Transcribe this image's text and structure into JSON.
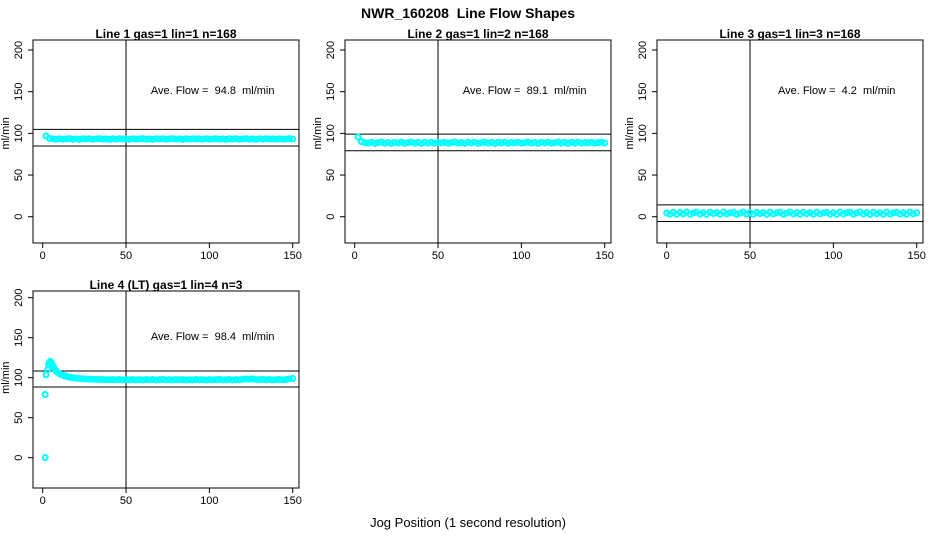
{
  "figure": {
    "title": "NWR_160208  Line Flow Shapes",
    "xlabel": "Jog Position (1 second resolution)",
    "background_color": "#ffffff",
    "marker_color": "#00ffff",
    "axis_color": "#000000"
  },
  "chart_data": [
    {
      "type": "scatter",
      "title": "Line 1 gas=1 lin=1 n=168",
      "annotation": "Ave. Flow =  94.8  ml/min",
      "avg_flow_ml_min": 94.8,
      "n": 168,
      "ylabel": "ml/min",
      "xticks": [
        0,
        50,
        100,
        150
      ],
      "yticks": [
        0,
        50,
        100,
        150,
        200
      ],
      "xlim": [
        0,
        150
      ],
      "ylim": [
        0,
        200
      ],
      "vline_x": 50,
      "hlines": [
        104.8,
        84.8
      ],
      "points": [
        [
          2,
          96.8
        ],
        [
          4,
          94.0
        ],
        [
          6,
          93.4
        ],
        [
          8,
          93.0
        ],
        [
          10,
          93.5
        ],
        [
          12,
          92.9
        ],
        [
          14,
          93.3
        ],
        [
          16,
          93.7
        ],
        [
          18,
          93.0
        ],
        [
          20,
          93.4
        ],
        [
          22,
          92.8
        ],
        [
          24,
          93.5
        ],
        [
          26,
          93.2
        ],
        [
          28,
          93.6
        ],
        [
          30,
          92.9
        ],
        [
          32,
          93.3
        ],
        [
          34,
          93.7
        ],
        [
          36,
          93.1
        ],
        [
          38,
          93.4
        ],
        [
          40,
          92.8
        ],
        [
          42,
          93.5
        ],
        [
          44,
          93.0
        ],
        [
          46,
          93.6
        ],
        [
          48,
          93.2
        ],
        [
          50,
          93.4
        ],
        [
          52,
          92.9
        ],
        [
          54,
          93.6
        ],
        [
          56,
          93.1
        ],
        [
          58,
          93.3
        ],
        [
          60,
          93.7
        ],
        [
          62,
          93.0
        ],
        [
          64,
          93.4
        ],
        [
          66,
          92.8
        ],
        [
          68,
          93.5
        ],
        [
          70,
          93.2
        ],
        [
          72,
          93.6
        ],
        [
          74,
          92.9
        ],
        [
          76,
          93.3
        ],
        [
          78,
          93.7
        ],
        [
          80,
          93.1
        ],
        [
          82,
          93.4
        ],
        [
          84,
          92.8
        ],
        [
          86,
          93.5
        ],
        [
          88,
          93.0
        ],
        [
          90,
          93.6
        ],
        [
          92,
          93.2
        ],
        [
          94,
          93.4
        ],
        [
          96,
          92.9
        ],
        [
          98,
          93.6
        ],
        [
          100,
          93.1
        ],
        [
          102,
          93.3
        ],
        [
          104,
          93.7
        ],
        [
          106,
          93.0
        ],
        [
          108,
          93.4
        ],
        [
          110,
          92.8
        ],
        [
          112,
          93.5
        ],
        [
          114,
          93.2
        ],
        [
          116,
          93.6
        ],
        [
          118,
          92.9
        ],
        [
          120,
          93.3
        ],
        [
          122,
          93.7
        ],
        [
          124,
          93.1
        ],
        [
          126,
          93.4
        ],
        [
          128,
          92.8
        ],
        [
          130,
          93.5
        ],
        [
          132,
          93.0
        ],
        [
          134,
          93.6
        ],
        [
          136,
          93.2
        ],
        [
          138,
          93.4
        ],
        [
          140,
          92.9
        ],
        [
          142,
          93.6
        ],
        [
          144,
          93.1
        ],
        [
          146,
          93.3
        ],
        [
          148,
          93.7
        ],
        [
          150,
          93.2
        ]
      ]
    },
    {
      "type": "scatter",
      "title": "Line 2 gas=1 lin=2 n=168",
      "annotation": "Ave. Flow =  89.1  ml/min",
      "avg_flow_ml_min": 89.1,
      "n": 168,
      "ylabel": "ml/min",
      "xticks": [
        0,
        50,
        100,
        150
      ],
      "yticks": [
        0,
        50,
        100,
        150,
        200
      ],
      "xlim": [
        0,
        150
      ],
      "ylim": [
        0,
        200
      ],
      "vline_x": 50,
      "hlines": [
        99.1,
        79.1
      ],
      "points": [
        [
          2,
          95.6
        ],
        [
          4,
          90.2
        ],
        [
          6,
          89.0
        ],
        [
          8,
          88.3
        ],
        [
          10,
          89.4
        ],
        [
          12,
          88.0
        ],
        [
          14,
          88.8
        ],
        [
          16,
          89.6
        ],
        [
          18,
          88.2
        ],
        [
          20,
          89.1
        ],
        [
          22,
          87.9
        ],
        [
          24,
          89.3
        ],
        [
          26,
          88.5
        ],
        [
          28,
          89.5
        ],
        [
          30,
          88.1
        ],
        [
          32,
          88.9
        ],
        [
          34,
          89.6
        ],
        [
          36,
          88.3
        ],
        [
          38,
          89.2
        ],
        [
          40,
          87.9
        ],
        [
          42,
          89.4
        ],
        [
          44,
          88.4
        ],
        [
          46,
          89.5
        ],
        [
          48,
          88.2
        ],
        [
          50,
          89.0
        ],
        [
          52,
          88.6
        ],
        [
          54,
          89.4
        ],
        [
          56,
          88.1
        ],
        [
          58,
          88.9
        ],
        [
          60,
          89.6
        ],
        [
          62,
          88.3
        ],
        [
          64,
          89.1
        ],
        [
          66,
          87.9
        ],
        [
          68,
          89.3
        ],
        [
          70,
          88.5
        ],
        [
          72,
          89.5
        ],
        [
          74,
          88.0
        ],
        [
          76,
          88.8
        ],
        [
          78,
          89.6
        ],
        [
          80,
          88.2
        ],
        [
          82,
          89.2
        ],
        [
          84,
          87.9
        ],
        [
          86,
          89.4
        ],
        [
          88,
          88.4
        ],
        [
          90,
          89.5
        ],
        [
          92,
          88.1
        ],
        [
          94,
          89.0
        ],
        [
          96,
          88.6
        ],
        [
          98,
          89.4
        ],
        [
          100,
          88.2
        ],
        [
          102,
          88.9
        ],
        [
          104,
          89.6
        ],
        [
          106,
          88.3
        ],
        [
          108,
          89.1
        ],
        [
          110,
          88.0
        ],
        [
          112,
          89.3
        ],
        [
          114,
          88.5
        ],
        [
          116,
          89.5
        ],
        [
          118,
          88.1
        ],
        [
          120,
          88.8
        ],
        [
          122,
          89.6
        ],
        [
          124,
          88.3
        ],
        [
          126,
          89.2
        ],
        [
          128,
          87.9
        ],
        [
          130,
          89.4
        ],
        [
          132,
          88.4
        ],
        [
          134,
          89.5
        ],
        [
          136,
          88.2
        ],
        [
          138,
          89.0
        ],
        [
          140,
          88.6
        ],
        [
          142,
          89.3
        ],
        [
          144,
          88.1
        ],
        [
          146,
          88.9
        ],
        [
          148,
          89.5
        ],
        [
          150,
          88.4
        ]
      ]
    },
    {
      "type": "scatter",
      "title": "Line 3 gas=1 lin=3 n=168",
      "annotation": "Ave. Flow =  4.2  ml/min",
      "avg_flow_ml_min": 4.2,
      "n": 168,
      "ylabel": "ml/min",
      "xticks": [
        0,
        50,
        100,
        150
      ],
      "yticks": [
        0,
        50,
        100,
        150,
        200
      ],
      "xlim": [
        0,
        150
      ],
      "ylim": [
        0,
        200
      ],
      "vline_x": 50,
      "hlines": [
        14.2,
        -5.8
      ],
      "points": [
        [
          0,
          4.5
        ],
        [
          2,
          3.1
        ],
        [
          4,
          5.4
        ],
        [
          6,
          2.8
        ],
        [
          8,
          4.9
        ],
        [
          10,
          3.5
        ],
        [
          12,
          5.7
        ],
        [
          14,
          2.9
        ],
        [
          16,
          4.4
        ],
        [
          18,
          5.5
        ],
        [
          20,
          3.2
        ],
        [
          22,
          4.8
        ],
        [
          24,
          2.7
        ],
        [
          26,
          5.3
        ],
        [
          28,
          3.8
        ],
        [
          30,
          4.9
        ],
        [
          32,
          2.9
        ],
        [
          34,
          5.6
        ],
        [
          36,
          3.4
        ],
        [
          38,
          4.6
        ],
        [
          40,
          5.4
        ],
        [
          42,
          2.8
        ],
        [
          44,
          4.2
        ],
        [
          46,
          5.7
        ],
        [
          48,
          3.1
        ],
        [
          50,
          4.8
        ],
        [
          52,
          2.9
        ],
        [
          54,
          5.2
        ],
        [
          56,
          3.7
        ],
        [
          58,
          4.9
        ],
        [
          60,
          2.8
        ],
        [
          62,
          5.5
        ],
        [
          64,
          3.3
        ],
        [
          66,
          4.7
        ],
        [
          68,
          5.3
        ],
        [
          70,
          2.9
        ],
        [
          72,
          4.4
        ],
        [
          74,
          5.6
        ],
        [
          76,
          3.2
        ],
        [
          78,
          4.9
        ],
        [
          80,
          2.8
        ],
        [
          82,
          5.4
        ],
        [
          84,
          3.6
        ],
        [
          86,
          4.8
        ],
        [
          88,
          2.9
        ],
        [
          90,
          5.5
        ],
        [
          92,
          3.3
        ],
        [
          94,
          4.6
        ],
        [
          96,
          5.2
        ],
        [
          98,
          3.0
        ],
        [
          100,
          4.8
        ],
        [
          102,
          2.8
        ],
        [
          104,
          5.6
        ],
        [
          106,
          3.4
        ],
        [
          108,
          4.7
        ],
        [
          110,
          5.3
        ],
        [
          112,
          2.9
        ],
        [
          114,
          4.5
        ],
        [
          116,
          5.7
        ],
        [
          118,
          3.1
        ],
        [
          120,
          4.9
        ],
        [
          122,
          2.8
        ],
        [
          124,
          5.4
        ],
        [
          126,
          3.5
        ],
        [
          128,
          4.8
        ],
        [
          130,
          2.9
        ],
        [
          132,
          5.5
        ],
        [
          134,
          3.2
        ],
        [
          136,
          4.6
        ],
        [
          138,
          5.3
        ],
        [
          140,
          3.0
        ],
        [
          142,
          4.9
        ],
        [
          144,
          2.8
        ],
        [
          146,
          5.6
        ],
        [
          148,
          3.4
        ],
        [
          150,
          4.7
        ]
      ]
    },
    {
      "type": "scatter",
      "title": "Line 4 (LT) gas=1 lin=4 n=3",
      "annotation": "Ave. Flow =  98.4  ml/min",
      "avg_flow_ml_min": 98.4,
      "n": 3,
      "ylabel": "ml/min",
      "xticks": [
        0,
        50,
        100,
        150
      ],
      "yticks": [
        0,
        50,
        100,
        150,
        200
      ],
      "xlim": [
        0,
        150
      ],
      "ylim": [
        0,
        200
      ],
      "vline_x": 50,
      "hlines": [
        108.4,
        88.4
      ],
      "points": [
        [
          1.5,
          0.2
        ],
        [
          1.5,
          79.0
        ],
        [
          2,
          103.5
        ],
        [
          3,
          110.0
        ],
        [
          3.5,
          116.0
        ],
        [
          4,
          119.0
        ],
        [
          4.5,
          120.5
        ],
        [
          5,
          119.5
        ],
        [
          5.5,
          117.5
        ],
        [
          6,
          115.0
        ],
        [
          7,
          111.5
        ],
        [
          8,
          108.5
        ],
        [
          9,
          106.5
        ],
        [
          10,
          105.0
        ],
        [
          11,
          104.0
        ],
        [
          12,
          103.2
        ],
        [
          13,
          102.5
        ],
        [
          14,
          101.8
        ],
        [
          15,
          101.2
        ],
        [
          16,
          100.7
        ],
        [
          17,
          100.3
        ],
        [
          18,
          100.0
        ],
        [
          19,
          99.7
        ],
        [
          20,
          99.4
        ],
        [
          22,
          99.0
        ],
        [
          24,
          98.7
        ],
        [
          26,
          98.4
        ],
        [
          28,
          98.2
        ],
        [
          30,
          98.0
        ],
        [
          32,
          97.9
        ],
        [
          34,
          97.8
        ],
        [
          36,
          97.7
        ],
        [
          38,
          97.6
        ],
        [
          40,
          97.5
        ],
        [
          42,
          97.6
        ],
        [
          44,
          97.4
        ],
        [
          46,
          97.7
        ],
        [
          48,
          97.3
        ],
        [
          50,
          97.6
        ],
        [
          52,
          97.4
        ],
        [
          54,
          97.8
        ],
        [
          56,
          97.3
        ],
        [
          58,
          97.6
        ],
        [
          60,
          97.2
        ],
        [
          62,
          97.7
        ],
        [
          64,
          97.4
        ],
        [
          66,
          97.8
        ],
        [
          68,
          97.2
        ],
        [
          70,
          97.5
        ],
        [
          72,
          97.9
        ],
        [
          74,
          97.3
        ],
        [
          76,
          97.6
        ],
        [
          78,
          97.2
        ],
        [
          80,
          97.7
        ],
        [
          82,
          97.4
        ],
        [
          84,
          97.8
        ],
        [
          86,
          97.2
        ],
        [
          88,
          97.5
        ],
        [
          90,
          97.3
        ],
        [
          92,
          97.8
        ],
        [
          94,
          97.4
        ],
        [
          96,
          97.6
        ],
        [
          98,
          97.2
        ],
        [
          100,
          97.7
        ],
        [
          102,
          97.3
        ],
        [
          104,
          97.6
        ],
        [
          106,
          97.9
        ],
        [
          108,
          97.3
        ],
        [
          110,
          97.5
        ],
        [
          112,
          97.8
        ],
        [
          114,
          97.2
        ],
        [
          116,
          97.6
        ],
        [
          118,
          97.4
        ],
        [
          120,
          98.0
        ],
        [
          122,
          98.4
        ],
        [
          124,
          98.2
        ],
        [
          126,
          98.6
        ],
        [
          128,
          97.8
        ],
        [
          130,
          97.5
        ],
        [
          132,
          97.9
        ],
        [
          134,
          97.4
        ],
        [
          136,
          97.7
        ],
        [
          138,
          97.3
        ],
        [
          140,
          97.6
        ],
        [
          142,
          97.9
        ],
        [
          144,
          97.4
        ],
        [
          146,
          97.8
        ],
        [
          148,
          98.6
        ],
        [
          150,
          99.0
        ]
      ]
    }
  ]
}
